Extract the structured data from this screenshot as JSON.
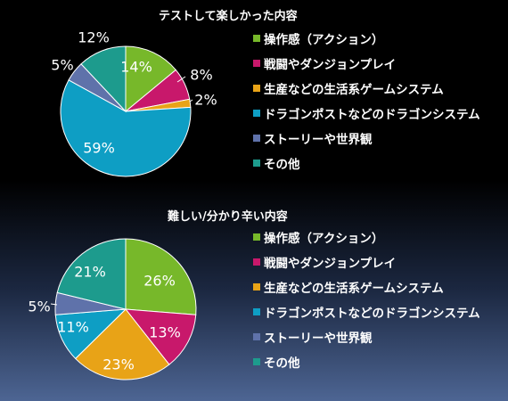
{
  "chart_data": [
    {
      "type": "pie",
      "title": "テストして楽しかった内容",
      "categories": [
        "操作感（アクション）",
        "戦闘やダンジョンプレイ",
        "生産などの生活系ゲームシステム",
        "ドラゴンポストなどのドラゴンシステム",
        "ストーリーや世界観",
        "その他"
      ],
      "values": [
        14,
        8,
        2,
        59,
        5,
        12
      ],
      "labels": [
        "14%",
        "8%",
        "2%",
        "59%",
        "5%",
        "12%"
      ],
      "colors": [
        "#77b82a",
        "#c8186b",
        "#e8a317",
        "#0e9ec4",
        "#5f72aa",
        "#1d9b8d"
      ],
      "legend_position": "right"
    },
    {
      "type": "pie",
      "title": "難しい/分かり辛い内容",
      "categories": [
        "操作感（アクション）",
        "戦闘やダンジョンプレイ",
        "生産などの生活系ゲームシステム",
        "ドラゴンポストなどのドラゴンシステム",
        "ストーリーや世界観",
        "その他"
      ],
      "values": [
        26,
        13,
        23,
        11,
        5,
        21
      ],
      "labels": [
        "26%",
        "13%",
        "23%",
        "11%",
        "5%",
        "21%"
      ],
      "colors": [
        "#77b82a",
        "#c8186b",
        "#e8a317",
        "#0e9ec4",
        "#5f72aa",
        "#1d9b8d"
      ],
      "legend_position": "right"
    }
  ]
}
